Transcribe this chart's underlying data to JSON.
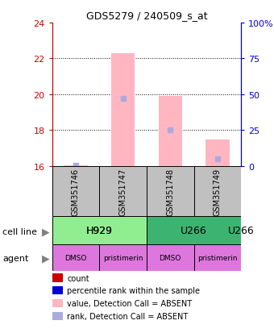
{
  "title": "GDS5279 / 240509_s_at",
  "samples": [
    "GSM351746",
    "GSM351747",
    "GSM351748",
    "GSM351749"
  ],
  "bar_values": [
    16.05,
    22.3,
    19.9,
    17.5
  ],
  "rank_values": [
    0.5,
    47.0,
    25.0,
    5.0
  ],
  "bar_color": "#FFB6C1",
  "rank_color": "#AAAADD",
  "ylim_left": [
    16,
    24
  ],
  "ylim_right": [
    0,
    100
  ],
  "yticks_left": [
    16,
    18,
    20,
    22,
    24
  ],
  "yticks_right": [
    0,
    25,
    50,
    75,
    100
  ],
  "ytick_labels_right": [
    "0",
    "25",
    "50",
    "75",
    "100%"
  ],
  "cell_line_labels": [
    "H929",
    "U266"
  ],
  "cell_line_colors": [
    "#90EE90",
    "#3CB371"
  ],
  "agent_labels": [
    "DMSO",
    "pristimerin",
    "DMSO",
    "pristimerin"
  ],
  "agent_color": "#DD77DD",
  "legend_items": [
    {
      "label": "count",
      "color": "#CC0000"
    },
    {
      "label": "percentile rank within the sample",
      "color": "#0000CC"
    },
    {
      "label": "value, Detection Call = ABSENT",
      "color": "#FFB6C1"
    },
    {
      "label": "rank, Detection Call = ABSENT",
      "color": "#AAAADD"
    }
  ],
  "grid_color": "black",
  "left_axis_color": "#CC0000",
  "right_axis_color": "#0000CC",
  "bar_width": 0.5,
  "sample_box_color": "#C0C0C0",
  "fig_width": 3.4,
  "fig_height": 4.14,
  "fig_dpi": 100
}
